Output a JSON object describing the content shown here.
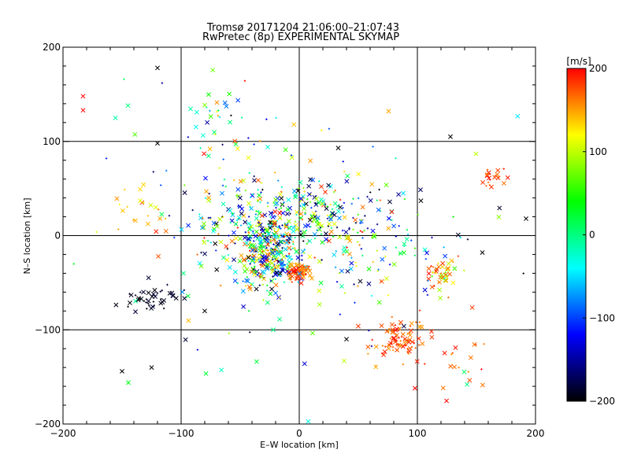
{
  "chart_data": {
    "type": "scatter",
    "title": "Tromsø 20171204 21:06:00–21:07:43",
    "subtitle": "RwPretec (8p) EXPERIMENTAL SKYMAP",
    "xlabel": "E–W location [km]",
    "ylabel": "N–S location [km]",
    "xlim": [
      -200,
      200
    ],
    "ylim": [
      -200,
      200
    ],
    "x_ticks": [
      "−200",
      "−100",
      "0",
      "100",
      "200"
    ],
    "y_ticks": [
      "−200",
      "−100",
      "0",
      "100",
      "200"
    ],
    "grid": true,
    "grid_lines": [
      -100,
      0,
      100
    ],
    "colorbar": {
      "label": "[m/s]",
      "range": [
        -200,
        200
      ],
      "ticks": [
        "200",
        "100",
        "0",
        "−100",
        "−200"
      ],
      "colors": [
        "#ff0000",
        "#ffff00",
        "#00ff00",
        "#00ffff",
        "#0000ff",
        "#000000"
      ]
    },
    "markers": {
      "large": "×",
      "small": "+"
    },
    "clusters": [
      {
        "cx": -25,
        "cy": -15,
        "sx": 12,
        "sy": 22,
        "n": 360,
        "vmin": -200,
        "vmax": 200
      },
      {
        "cx": 0,
        "cy": -38,
        "sx": 5,
        "sy": 4,
        "n": 70,
        "vmin": 140,
        "vmax": 200
      },
      {
        "cx": 10,
        "cy": 25,
        "sx": 18,
        "sy": 20,
        "n": 130,
        "vmin": -200,
        "vmax": 200
      },
      {
        "cx": -55,
        "cy": 10,
        "sx": 25,
        "sy": 25,
        "n": 120,
        "vmin": -200,
        "vmax": 200
      },
      {
        "cx": 60,
        "cy": -10,
        "sx": 30,
        "sy": 30,
        "n": 110,
        "vmin": -200,
        "vmax": 200
      },
      {
        "cx": 85,
        "cy": -110,
        "sx": 12,
        "sy": 10,
        "n": 90,
        "vmin": 150,
        "vmax": 200
      },
      {
        "cx": -125,
        "cy": -68,
        "sx": 13,
        "sy": 7,
        "n": 45,
        "vmin": -200,
        "vmax": -180
      },
      {
        "cx": 120,
        "cy": -40,
        "sx": 7,
        "sy": 7,
        "n": 45,
        "vmin": 60,
        "vmax": 200
      },
      {
        "cx": 163,
        "cy": 60,
        "sx": 6,
        "sy": 6,
        "n": 22,
        "vmin": 150,
        "vmax": 200
      },
      {
        "cx": -65,
        "cy": 115,
        "sx": 14,
        "sy": 20,
        "n": 35,
        "vmin": -200,
        "vmax": 200
      },
      {
        "cx": -130,
        "cy": 30,
        "sx": 14,
        "sy": 14,
        "n": 18,
        "vmin": 100,
        "vmax": 200
      },
      {
        "cx": 140,
        "cy": -120,
        "sx": 18,
        "sy": 30,
        "n": 20,
        "vmin": 150,
        "vmax": 200
      },
      {
        "cx": 0,
        "cy": 0,
        "sx": 90,
        "sy": 80,
        "n": 160,
        "vmin": -200,
        "vmax": 200
      }
    ],
    "points": [
      {
        "x": -183,
        "y": 148,
        "v": 200
      },
      {
        "x": -183,
        "y": 133,
        "v": 200
      },
      {
        "x": -145,
        "y": 138,
        "v": 0
      },
      {
        "x": -150,
        "y": -144,
        "v": -200
      },
      {
        "x": -125,
        "y": -140,
        "v": -200
      },
      {
        "x": -120,
        "y": 98,
        "v": -200
      },
      {
        "x": -120,
        "y": 178,
        "v": -200
      },
      {
        "x": 33,
        "y": 93,
        "v": -200
      },
      {
        "x": 128,
        "y": 105,
        "v": -200
      },
      {
        "x": 192,
        "y": 18,
        "v": -200
      },
      {
        "x": 155,
        "y": -18,
        "v": -200
      },
      {
        "x": 98,
        "y": -162,
        "v": 200
      },
      {
        "x": 38,
        "y": -133,
        "v": 100
      },
      {
        "x": 142,
        "y": -158,
        "v": 0
      },
      {
        "x": -22,
        "y": -100,
        "v": 0
      },
      {
        "x": 40,
        "y": -110,
        "v": -200
      },
      {
        "x": -98,
        "y": -40,
        "v": 0
      },
      {
        "x": -80,
        "y": -80,
        "v": -200
      },
      {
        "x": 103,
        "y": 37,
        "v": -200
      },
      {
        "x": 88,
        "y": 45,
        "v": -50
      }
    ],
    "seed": 20171204
  }
}
